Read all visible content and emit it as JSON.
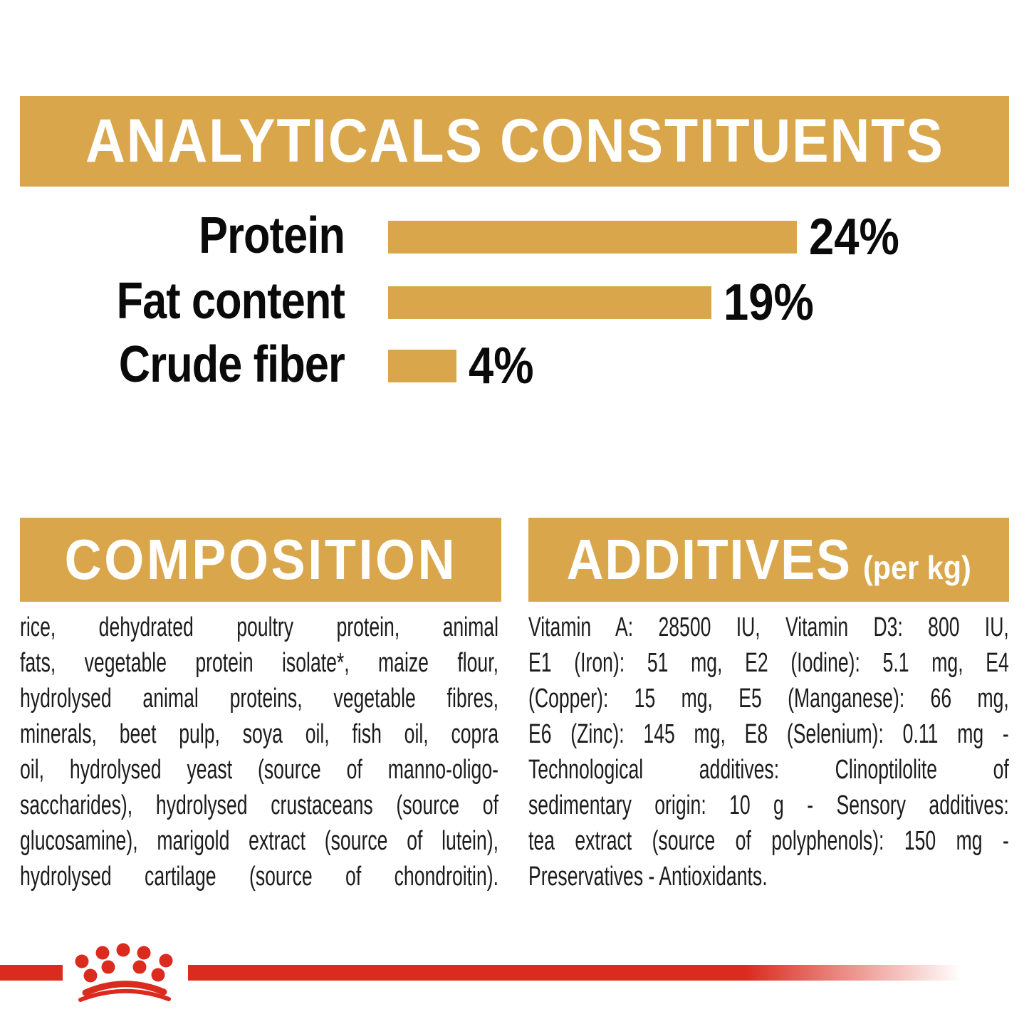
{
  "palette": {
    "gold": "#D9A64B",
    "red": "#DB2A1E",
    "heading_text": "#FFFFFF",
    "body_text": "#1C1C1C"
  },
  "analyticals": {
    "title": "ANALYTICALS CONSTITUENTS",
    "rows": [
      {
        "label": "Protein",
        "value": "24%",
        "pct": 24
      },
      {
        "label": "Fat content",
        "value": "19%",
        "pct": 19
      },
      {
        "label": "Crude fiber",
        "value": "4%",
        "pct": 4
      }
    ]
  },
  "chart_data": {
    "type": "bar",
    "orientation": "horizontal",
    "title": "ANALYTICALS CONSTITUENTS",
    "categories": [
      "Protein",
      "Fat content",
      "Crude fiber"
    ],
    "values": [
      24,
      19,
      4
    ],
    "unit": "%",
    "data_labels": [
      "24%",
      "19%",
      "4%"
    ],
    "xlim": [
      0,
      25
    ],
    "grid": false,
    "bar_color": "#D9A64B"
  },
  "composition": {
    "title": "COMPOSITION",
    "lines": [
      "rice, dehydrated poultry protein, animal",
      "fats, vegetable protein isolate*, maize flour,",
      "hydrolysed animal proteins, vegetable fibres,",
      "minerals, beet pulp, soya oil, fish oil, copra",
      "oil, hydrolysed yeast (source of manno-oligo-",
      "saccharides), hydrolysed crustaceans (source of",
      "glucosamine), marigold extract (source of lutein),",
      "hydrolysed cartilage (source of chondroitin)."
    ]
  },
  "additives": {
    "title": "ADDITIVES",
    "title_suffix": "(per kg)",
    "lines": [
      "Vitamin A: 28500 IU, Vitamin D3: 800 IU,",
      "E1 (Iron): 51 mg, E2 (Iodine): 5.1 mg, E4",
      "(Copper): 15 mg, E5 (Manganese): 66 mg,",
      "E6 (Zinc): 145 mg, E8 (Selenium): 0.11 mg -",
      "Technological additives: Clinoptilolite of",
      "sedimentary origin: 10 g - Sensory additives:",
      "tea extract (source of polyphenols): 150 mg -",
      "Preservatives - Antioxidants."
    ]
  },
  "footer": {
    "logo": "royal-canin-crown-icon"
  }
}
